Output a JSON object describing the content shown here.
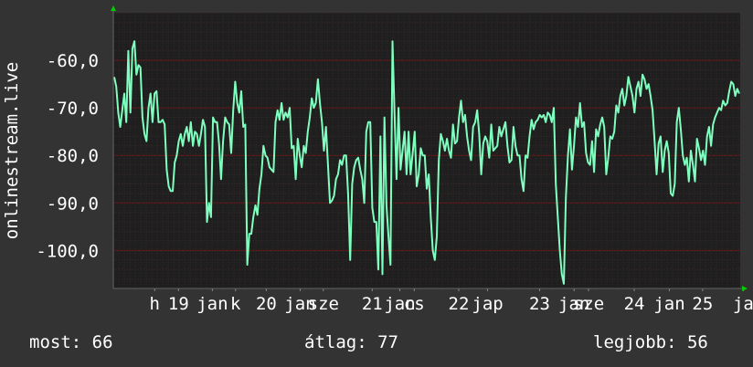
{
  "chart_data": {
    "type": "line",
    "ylabel": "onlinestream.live",
    "yticks": [
      "-60,0",
      "-70,0",
      "-80,0",
      "-90,0",
      "-100,0"
    ],
    "ytick_values": [
      -60,
      -70,
      -80,
      -90,
      -100
    ],
    "ylim": [
      -108,
      -50
    ],
    "x_tick_labels": [
      "h",
      "19",
      "jan",
      "k",
      "20",
      "jan",
      "sze",
      "21",
      "jan",
      "cs",
      "22",
      "jap",
      "23",
      "jan",
      "sze",
      "24",
      "jan",
      "25",
      "ja"
    ],
    "x_tick_positions": [
      0.066,
      0.104,
      0.158,
      0.195,
      0.244,
      0.298,
      0.335,
      0.413,
      0.457,
      0.48,
      0.551,
      0.597,
      0.68,
      0.735,
      0.758,
      0.831,
      0.887,
      0.94,
      1.005
    ],
    "grid": true,
    "colors": {
      "line": "#7fffbf",
      "background": "#333333",
      "plot": "#1f1f1f",
      "grid": "#5a1f1f",
      "axis_arrow": "#00cc00"
    },
    "series": [
      {
        "values": [
          -63.5,
          -65.5,
          -71,
          -74,
          -70.5,
          -67,
          -73,
          -58,
          -71,
          -57.5,
          -56,
          -63,
          -61,
          -61.5,
          -72,
          -75.5,
          -77,
          -70,
          -67,
          -73,
          -67,
          -66.5,
          -73,
          -73,
          -72.5,
          -73.5,
          -83,
          -86.5,
          -87.5,
          -87.5,
          -81.5,
          -80,
          -77,
          -75.5,
          -78,
          -75.5,
          -74,
          -77,
          -73,
          -78,
          -75,
          -75.5,
          -78,
          -75.5,
          -72.5,
          -74,
          -94,
          -90,
          -93,
          -72,
          -73,
          -73,
          -77.5,
          -85,
          -77,
          -72,
          -73,
          -73.5,
          -79.5,
          -70.5,
          -64.5,
          -69,
          -71,
          -66.5,
          -74,
          -73.5,
          -103,
          -96.5,
          -96.5,
          -93,
          -90.5,
          -92.5,
          -87,
          -84,
          -78,
          -80,
          -80.5,
          -82.5,
          -83,
          -83.5,
          -73,
          -70.5,
          -72.5,
          -69,
          -72.5,
          -71,
          -72,
          -70,
          -78.5,
          -78,
          -85,
          -76.5,
          -80,
          -82.5,
          -78,
          -79.5,
          -75,
          -72,
          -68,
          -70,
          -69,
          -64,
          -69,
          -73,
          -79,
          -74,
          -82,
          -90,
          -89.5,
          -88.5,
          -85,
          -84,
          -81,
          -82,
          -80,
          -80,
          -88,
          -102,
          -86,
          -82.5,
          -81,
          -80.5,
          -83,
          -85,
          -90,
          -75,
          -73,
          -73,
          -91,
          -94,
          -94,
          -104,
          -76,
          -105,
          -72,
          -90.5,
          -97,
          -103,
          -56,
          -71,
          -85,
          -70,
          -83,
          -79,
          -75,
          -84,
          -75,
          -84,
          -79.5,
          -75,
          -86.5,
          -84,
          -78.5,
          -80,
          -80,
          -87,
          -84,
          -93,
          -100,
          -102,
          -97,
          -81,
          -75.5,
          -77,
          -79,
          -76.5,
          -79,
          -80.5,
          -73.5,
          -77.5,
          -77,
          -72,
          -68.5,
          -73,
          -71.5,
          -76,
          -79,
          -81,
          -74,
          -73,
          -70.5,
          -75.5,
          -84,
          -77.5,
          -76,
          -77,
          -80.5,
          -73.5,
          -79,
          -78.5,
          -78,
          -74,
          -76,
          -74.5,
          -73,
          -78,
          -81.5,
          -81,
          -74,
          -78,
          -80,
          -80,
          -85,
          -87.5,
          -80,
          -80.5,
          -76,
          -72.5,
          -74.5,
          -73,
          -72.5,
          -71.5,
          -72,
          -71.5,
          -73,
          -71,
          -71.5,
          -73,
          -70,
          -86,
          -93,
          -100,
          -105,
          -107,
          -89,
          -80,
          -74.5,
          -83,
          -78,
          -72,
          -74,
          -69,
          -74,
          -73,
          -79.5,
          -81.5,
          -82,
          -77,
          -83.5,
          -74.5,
          -76,
          -73.5,
          -72,
          -74,
          -84,
          -80.5,
          -76,
          -76.5,
          -75,
          -69.5,
          -71,
          -67.5,
          -66,
          -69.5,
          -67.5,
          -63.5,
          -65.5,
          -67.5,
          -71,
          -66,
          -64.5,
          -67.5,
          -63,
          -64,
          -66,
          -65,
          -67.5,
          -70.5,
          -77,
          -84,
          -77.5,
          -76,
          -83.5,
          -79,
          -77,
          -79.5,
          -88,
          -88.5,
          -86,
          -73,
          -70,
          -74.5,
          -80,
          -82,
          -80.5,
          -85.5,
          -79,
          -82,
          -85.5,
          -76.5,
          -78.5,
          -81,
          -79,
          -82,
          -76,
          -74,
          -78,
          -73.5,
          -72,
          -71,
          -70,
          -70.5,
          -68.5,
          -69.5,
          -69,
          -66.5,
          -64.5,
          -65,
          -67.5,
          -66,
          -67
        ]
      }
    ]
  },
  "stats": {
    "current": "most: 66",
    "average": "átlag: 77",
    "best": "legjobb: 56"
  }
}
